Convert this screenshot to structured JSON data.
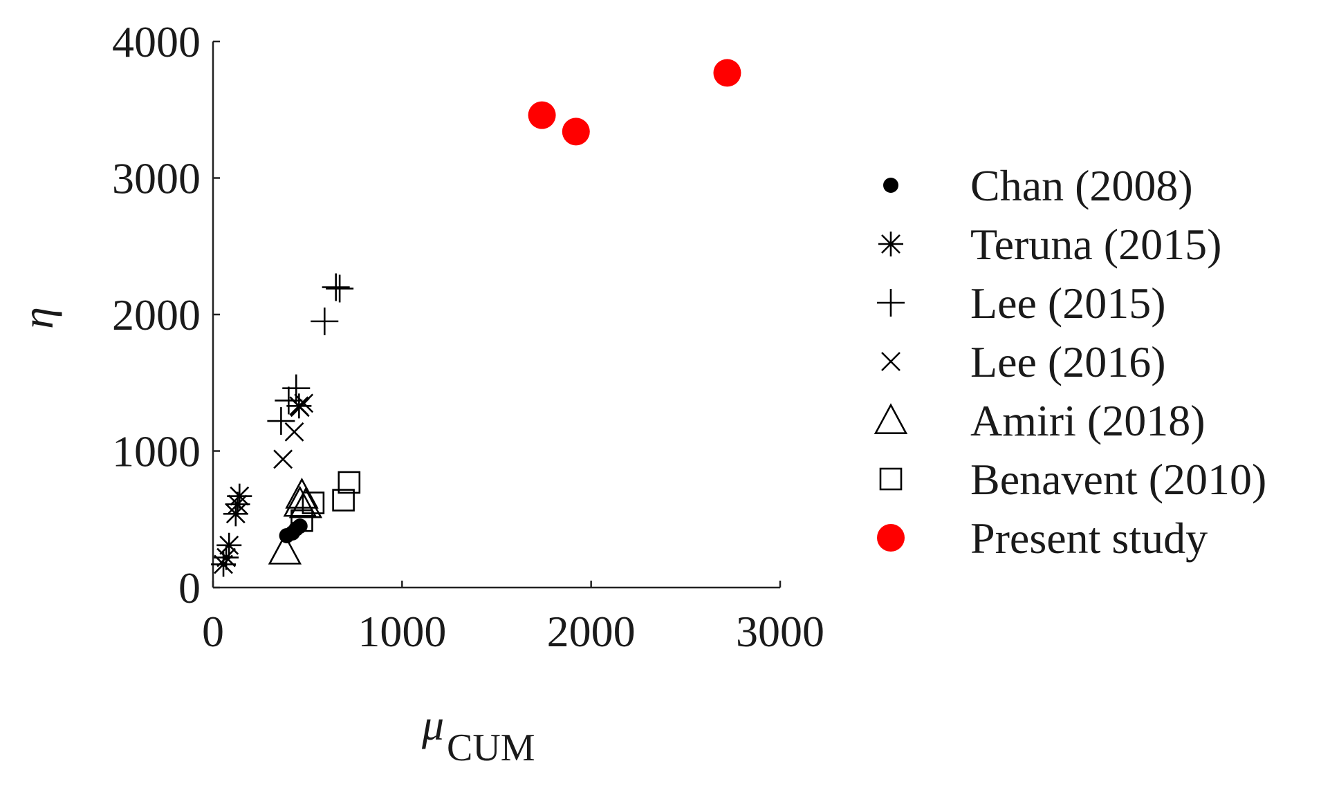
{
  "chart_data": {
    "type": "scatter",
    "title": "",
    "xlabel": "μ",
    "xlabel_sub": "CUM",
    "ylabel": "η",
    "xlim": [
      0,
      3000
    ],
    "ylim": [
      0,
      4000
    ],
    "x_ticks": [
      0,
      1000,
      2000,
      3000
    ],
    "y_ticks": [
      0,
      1000,
      2000,
      3000,
      4000
    ],
    "x_tick_labels": [
      "0",
      "1000",
      "2000",
      "3000"
    ],
    "y_tick_labels": [
      "0",
      "1000",
      "2000",
      "3000",
      "4000"
    ],
    "grid": false,
    "legend_position": "right",
    "series": [
      {
        "name": "Chan (2008)",
        "marker": "filled-circle",
        "color": "#000000",
        "points": [
          [
            390,
            380
          ],
          [
            420,
            400
          ],
          [
            440,
            430
          ],
          [
            460,
            450
          ]
        ]
      },
      {
        "name": "Teruna (2015)",
        "marker": "asterisk",
        "color": "#000000",
        "points": [
          [
            55,
            170
          ],
          [
            70,
            220
          ],
          [
            85,
            310
          ],
          [
            120,
            540
          ],
          [
            130,
            610
          ],
          [
            140,
            670
          ],
          [
            455,
            1330
          ]
        ]
      },
      {
        "name": "Lee (2015)",
        "marker": "plus",
        "color": "#000000",
        "points": [
          [
            360,
            1220
          ],
          [
            400,
            1370
          ],
          [
            440,
            1460
          ],
          [
            590,
            1950
          ],
          [
            650,
            2200
          ],
          [
            670,
            2190
          ]
        ]
      },
      {
        "name": "Lee (2016)",
        "marker": "cross",
        "color": "#000000",
        "points": [
          [
            370,
            940
          ],
          [
            430,
            1140
          ],
          [
            460,
            1320
          ],
          [
            480,
            1350
          ]
        ]
      },
      {
        "name": "Amiri (2018)",
        "marker": "triangle",
        "color": "#000000",
        "points": [
          [
            380,
            270
          ],
          [
            460,
            620
          ],
          [
            470,
            680
          ],
          [
            490,
            610
          ]
        ]
      },
      {
        "name": "Benavent (2010)",
        "marker": "square",
        "color": "#000000",
        "points": [
          [
            470,
            490
          ],
          [
            530,
            620
          ],
          [
            690,
            640
          ],
          [
            720,
            770
          ]
        ]
      },
      {
        "name": "Present study",
        "marker": "filled-circle-large",
        "color": "#ff0000",
        "points": [
          [
            1740,
            3460
          ],
          [
            1920,
            3340
          ],
          [
            2720,
            3770
          ]
        ]
      }
    ]
  }
}
